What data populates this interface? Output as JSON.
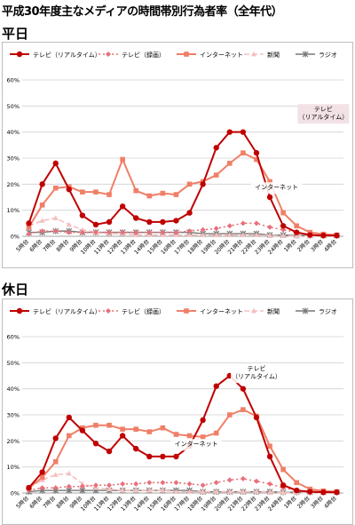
{
  "page": {
    "title": "平成30年度主なメディアの時間帯別行為者率（全年代）"
  },
  "chart_data": [
    {
      "type": "line",
      "title": "平日",
      "x": [
        "5時台",
        "6時台",
        "7時台",
        "8時台",
        "9時台",
        "10時台",
        "11時台",
        "12時台",
        "13時台",
        "14時台",
        "15時台",
        "16時台",
        "17時台",
        "18時台",
        "19時台",
        "20時台",
        "21時台",
        "22時台",
        "23時台",
        "24時台",
        "1時台",
        "2時台",
        "3時台",
        "4時台"
      ],
      "ylim": [
        0,
        60
      ],
      "yticks": [
        "0%",
        "10%",
        "20%",
        "30%",
        "40%",
        "50%",
        "60%"
      ],
      "grid": true,
      "legend": "top",
      "series": [
        {
          "name": "テレビ（リアルタイム）",
          "color": "#c00000",
          "values": [
            5,
            20,
            28,
            18,
            8,
            4.5,
            5.5,
            11.5,
            7,
            5.5,
            5.5,
            6,
            9,
            20,
            34,
            40,
            40,
            32,
            15,
            4,
            1.5,
            0.5,
            0.3,
            0.3
          ]
        },
        {
          "name": "テレビ（録画）",
          "color": "#e8707a",
          "values": [
            1,
            2,
            2,
            1.5,
            1.5,
            1.5,
            1.5,
            1.5,
            1.5,
            1.5,
            1.5,
            1.5,
            2,
            2.5,
            3,
            4,
            5,
            5,
            3.5,
            2.5,
            1.5,
            0.5,
            0.3,
            0.2
          ]
        },
        {
          "name": "インターネット",
          "color": "#f07f67",
          "values": [
            3.5,
            12,
            18.5,
            19,
            17,
            17,
            16,
            29.5,
            17.5,
            15.5,
            16.5,
            16,
            20,
            21,
            23.5,
            28,
            32,
            29.5,
            21,
            9,
            4,
            1.5,
            0.8,
            0.5
          ]
        },
        {
          "name": "新聞",
          "color": "#f5c0c0",
          "values": [
            4,
            6,
            7,
            4.5,
            2.5,
            1.5,
            1,
            1,
            0.5,
            0.5,
            0.5,
            0.5,
            0.5,
            0.5,
            0.5,
            0.5,
            0.5,
            0.5,
            0.3,
            0.2,
            0.1,
            0.1,
            0.1,
            0.3
          ]
        },
        {
          "name": "ラジオ",
          "color": "#777777",
          "values": [
            1.5,
            1.5,
            2,
            2,
            1.5,
            1.5,
            1.5,
            1.5,
            1.5,
            1.5,
            1.5,
            1.5,
            1.5,
            1,
            1,
            1,
            1,
            1,
            0.5,
            0.5,
            0.3,
            0.3,
            0.3,
            0.3
          ]
        }
      ],
      "annotations": [
        {
          "text": "テレビ\n（リアルタイム）",
          "series": 0,
          "x": 22,
          "y": 48,
          "pos": "box"
        },
        {
          "text": "インターネット",
          "series": 2,
          "x": 18.5,
          "y": 18,
          "pos": "plain"
        }
      ]
    },
    {
      "type": "line",
      "title": "休日",
      "x": [
        "5時台",
        "6時台",
        "7時台",
        "8時台",
        "9時台",
        "10時台",
        "11時台",
        "12時台",
        "13時台",
        "14時台",
        "15時台",
        "16時台",
        "17時台",
        "18時台",
        "19時台",
        "20時台",
        "21時台",
        "22時台",
        "23時台",
        "24時台",
        "1時台",
        "2時台",
        "3時台",
        "4時台"
      ],
      "ylim": [
        0,
        60
      ],
      "yticks": [
        "0%",
        "10%",
        "20%",
        "30%",
        "40%",
        "50%",
        "60%"
      ],
      "grid": true,
      "legend": "top",
      "series": [
        {
          "name": "テレビ（リアルタイム）",
          "color": "#c00000",
          "values": [
            2,
            8,
            21,
            29,
            24,
            19,
            16,
            22,
            17,
            14,
            14,
            14,
            18,
            28,
            41,
            45,
            40,
            29,
            14,
            3,
            1,
            0.5,
            0.3,
            0.3
          ]
        },
        {
          "name": "テレビ（録画）",
          "color": "#e8707a",
          "values": [
            1,
            2,
            2,
            2.5,
            2.5,
            3,
            3,
            3.5,
            3.5,
            4,
            4,
            4,
            3.5,
            3,
            4,
            5,
            5.5,
            4.5,
            3.5,
            2,
            1,
            0.5,
            0.3,
            0.2
          ]
        },
        {
          "name": "インターネット",
          "color": "#f07f67",
          "values": [
            2,
            6,
            12,
            22,
            25,
            26,
            26,
            24.5,
            24.5,
            23.5,
            25,
            22.5,
            22,
            21.5,
            23,
            30,
            32,
            29.5,
            18,
            9,
            4,
            1.5,
            0.8,
            0.5
          ]
        },
        {
          "name": "新聞",
          "color": "#f5c0c0",
          "values": [
            2,
            5,
            7,
            7.5,
            3.5,
            2,
            1.5,
            1,
            1,
            1,
            1,
            0.5,
            0.5,
            0.5,
            0.5,
            0.5,
            0.5,
            0.5,
            0.3,
            0.2,
            0.1,
            0.1,
            0.1,
            0.3
          ]
        },
        {
          "name": "ラジオ",
          "color": "#777777",
          "values": [
            0.5,
            1,
            1,
            1,
            1,
            1,
            1,
            1,
            1,
            1,
            1,
            1,
            1,
            0.5,
            0.5,
            0.5,
            0.5,
            0.5,
            0.5,
            0.3,
            0.3,
            0.3,
            0.3,
            0.3
          ]
        }
      ],
      "annotations": [
        {
          "text": "テレビ\n（リアルタイム）",
          "series": 0,
          "x": 17,
          "y": 47,
          "pos": "plain"
        },
        {
          "text": "インターネット",
          "series": 2,
          "x": 12.5,
          "y": 18,
          "pos": "plain"
        }
      ]
    }
  ]
}
